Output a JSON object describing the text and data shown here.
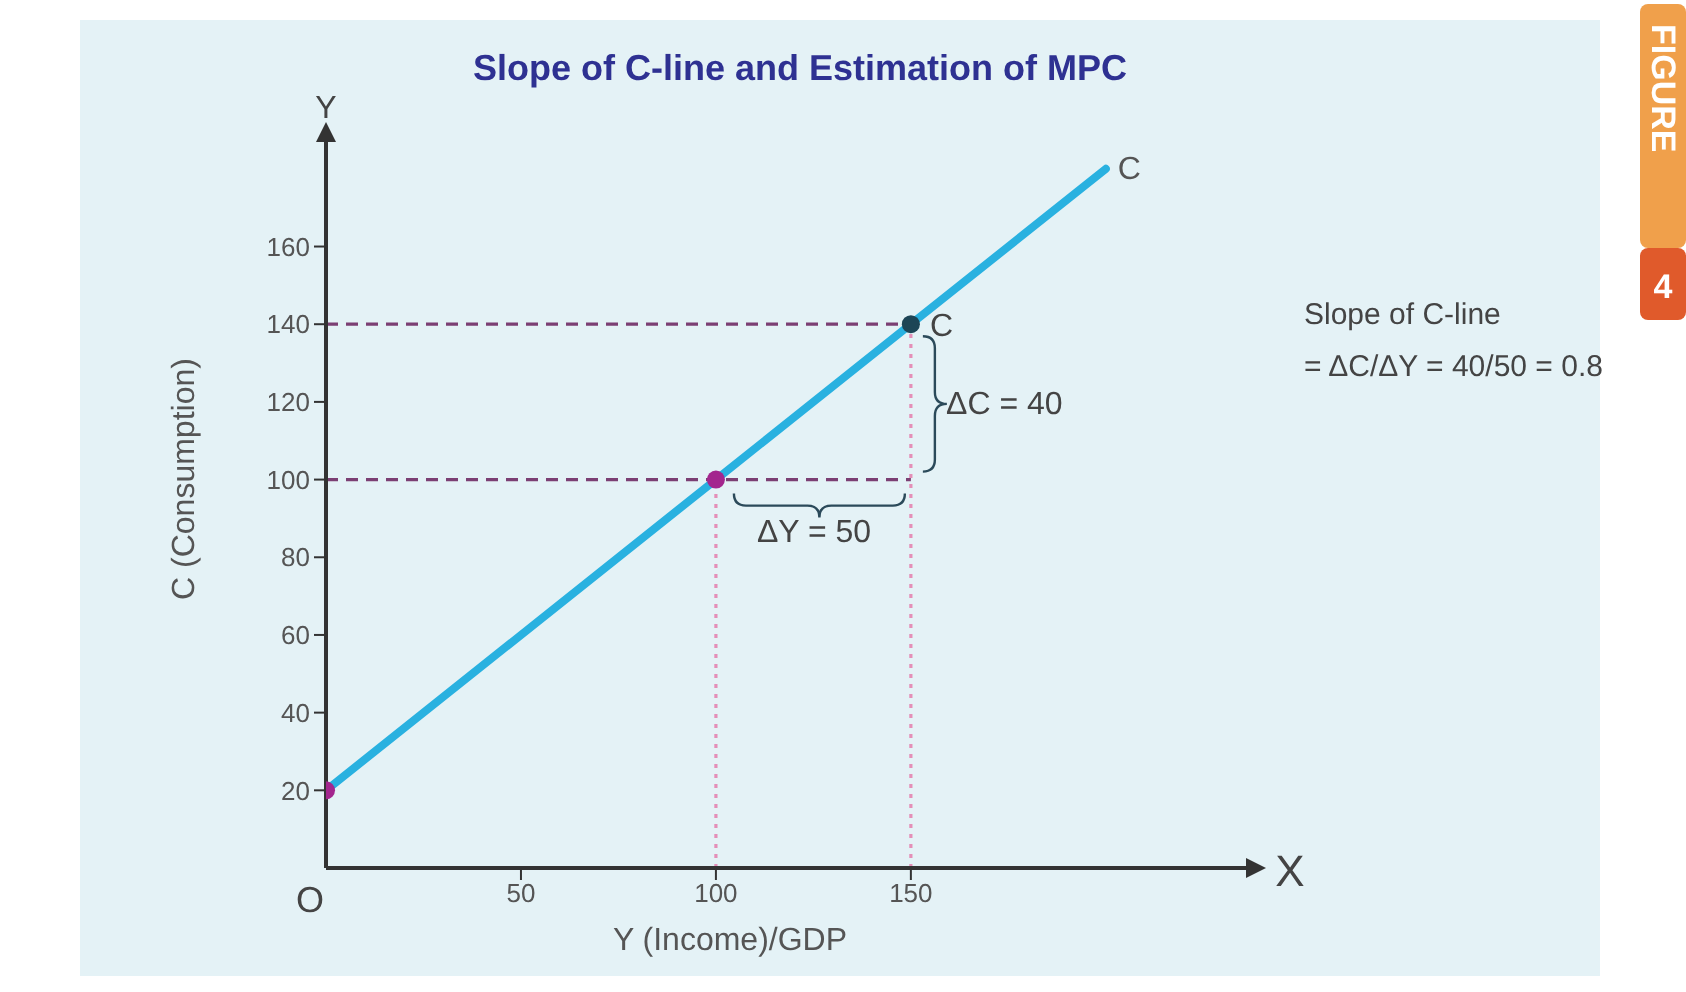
{
  "chart_data": {
    "type": "line",
    "title": "Slope of C-line and Estimation of MPC",
    "xlabel": "Y (Income)/GDP",
    "ylabel": "C (Consumption)",
    "xlim": [
      0,
      238
    ],
    "ylim": [
      0,
      190
    ],
    "xticks": [
      50,
      100,
      150
    ],
    "yticks": [
      20,
      40,
      60,
      80,
      100,
      120,
      140,
      160
    ],
    "grid": false,
    "legend": false,
    "marker": "none",
    "line_style": "solid",
    "series": [
      {
        "name": "C",
        "color": "#29b1e0",
        "x": [
          0,
          100,
          150,
          200
        ],
        "values": [
          20,
          100,
          140,
          180
        ]
      },
      {
        "type": "scatter",
        "marker": "circle",
        "x": [
          0,
          100,
          150
        ],
        "values": [
          20,
          100,
          140
        ],
        "colors": [
          "#a3268e",
          "#a3268e",
          "#1d4556"
        ]
      }
    ],
    "ref_lines": [
      {
        "axis": "y",
        "value": 100,
        "color": "#7b3f73",
        "line_style": "dashed"
      },
      {
        "axis": "y",
        "value": 140,
        "color": "#7b3f73",
        "line_style": "dashed"
      },
      {
        "axis": "x",
        "value": 100,
        "color": "#e48fb8",
        "line_style": "dotted"
      },
      {
        "axis": "x",
        "value": 150,
        "color": "#e48fb8",
        "line_style": "dotted"
      }
    ],
    "annotations": [
      "C",
      "ΔC = 40",
      "ΔY = 50",
      "O",
      "Y",
      "X",
      "Slope of C-line",
      "= ΔC/ΔY = 40/50 = 0.8",
      "FIGURE 4"
    ]
  }
}
